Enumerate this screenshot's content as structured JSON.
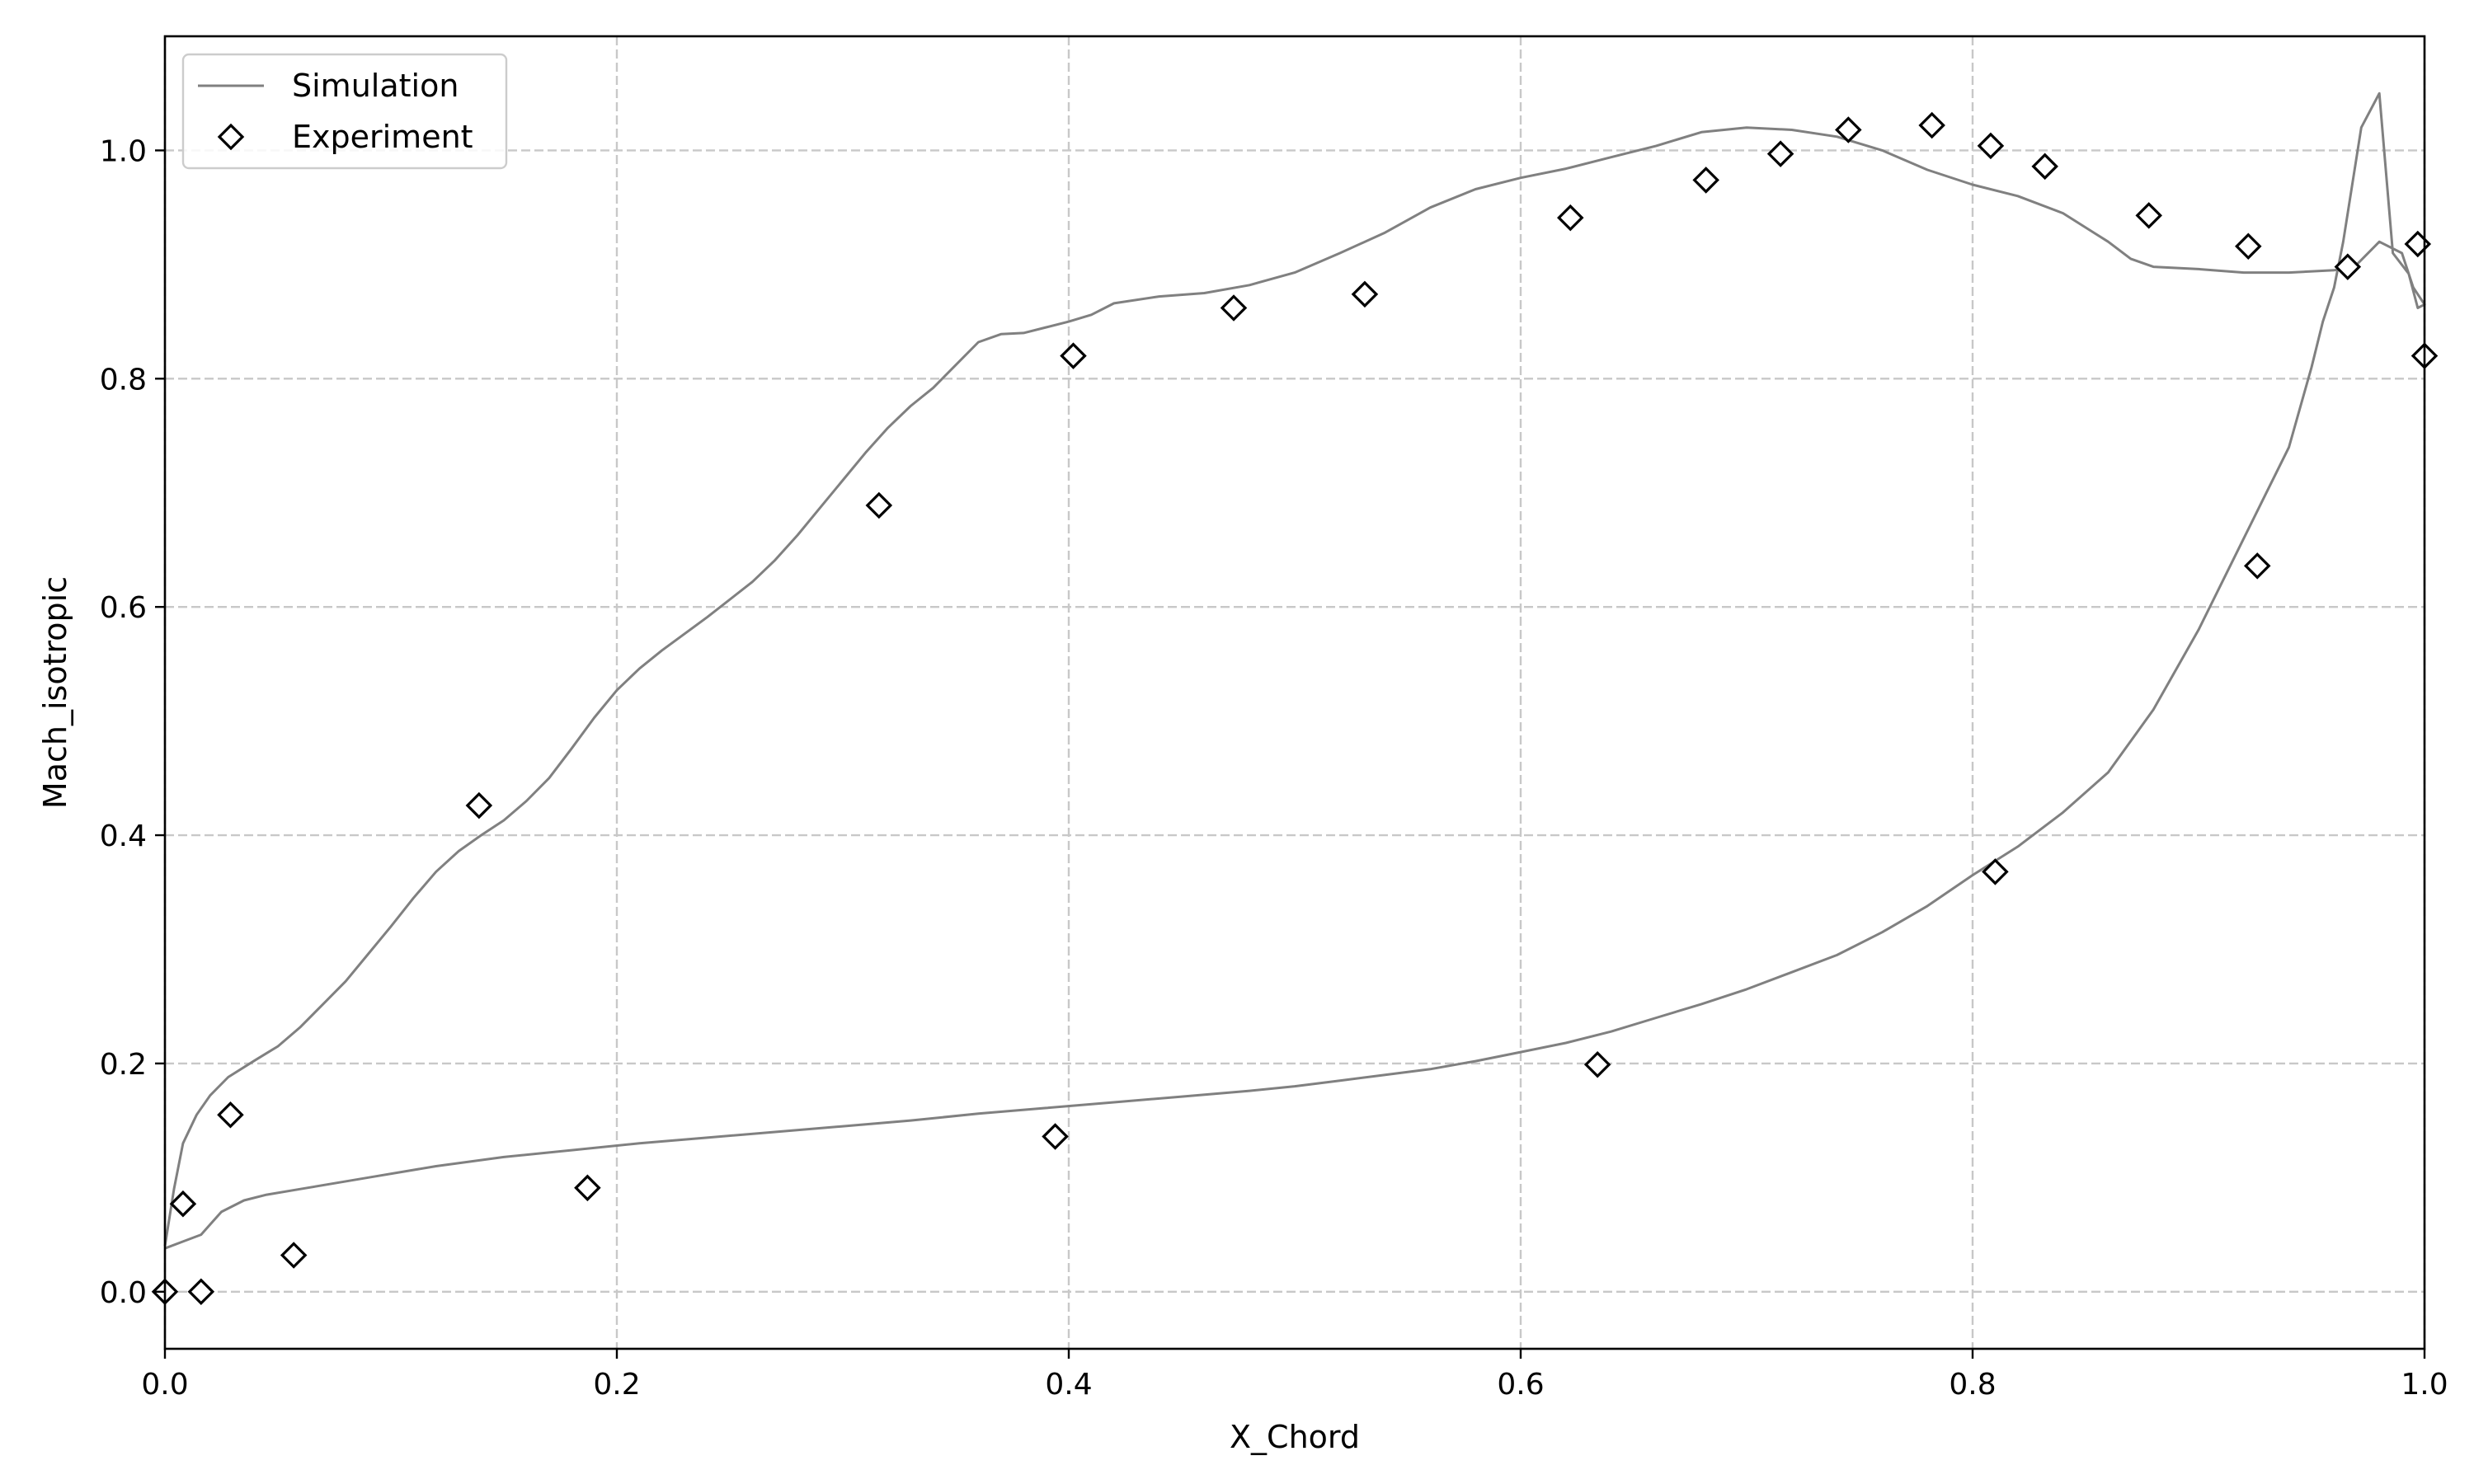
{
  "chart_data": {
    "type": "line",
    "title": "",
    "xlabel": "X_Chord",
    "ylabel": "Mach_isotropic",
    "xlim": [
      0.0,
      1.0
    ],
    "ylim": [
      -0.05,
      1.1
    ],
    "xticks": [
      0.0,
      0.2,
      0.4,
      0.6,
      0.8,
      1.0
    ],
    "xtick_labels": [
      "0.0",
      "0.2",
      "0.4",
      "0.6",
      "0.8",
      "1.0"
    ],
    "yticks": [
      0.0,
      0.2,
      0.4,
      0.6,
      0.8,
      1.0
    ],
    "ytick_labels": [
      "0.0",
      "0.2",
      "0.4",
      "0.6",
      "0.8",
      "1.0"
    ],
    "grid": true,
    "legend_position": "top-left",
    "colors": {
      "simulation": "#808080",
      "experiment": "#000000",
      "grid": "#c8c8c8"
    },
    "series": [
      {
        "name": "Simulation",
        "style": "line",
        "x": [
          0.0,
          0.004,
          0.008,
          0.014,
          0.02,
          0.028,
          0.04,
          0.05,
          0.06,
          0.07,
          0.08,
          0.09,
          0.1,
          0.11,
          0.12,
          0.13,
          0.14,
          0.15,
          0.16,
          0.17,
          0.18,
          0.19,
          0.2,
          0.21,
          0.22,
          0.24,
          0.26,
          0.27,
          0.28,
          0.29,
          0.3,
          0.31,
          0.32,
          0.33,
          0.34,
          0.35,
          0.36,
          0.37,
          0.38,
          0.39,
          0.4,
          0.41,
          0.42,
          0.44,
          0.46,
          0.48,
          0.5,
          0.52,
          0.54,
          0.56,
          0.58,
          0.6,
          0.62,
          0.64,
          0.66,
          0.68,
          0.7,
          0.72,
          0.74,
          0.76,
          0.78,
          0.8,
          0.82,
          0.84,
          0.86,
          0.87,
          0.88,
          0.89,
          0.9,
          0.92,
          0.94,
          0.96,
          0.97,
          0.98,
          0.99,
          0.995,
          1.0,
          0.997,
          0.993,
          0.986,
          0.98,
          0.972,
          0.964,
          0.96,
          0.955,
          0.95,
          0.945,
          0.94,
          0.93,
          0.92,
          0.9,
          0.88,
          0.86,
          0.84,
          0.82,
          0.8,
          0.78,
          0.76,
          0.74,
          0.72,
          0.7,
          0.68,
          0.66,
          0.64,
          0.62,
          0.6,
          0.58,
          0.56,
          0.54,
          0.52,
          0.5,
          0.48,
          0.45,
          0.42,
          0.39,
          0.36,
          0.33,
          0.3,
          0.27,
          0.24,
          0.21,
          0.18,
          0.15,
          0.12,
          0.09,
          0.06,
          0.045,
          0.035,
          0.025,
          0.016,
          0.008,
          0.0
        ],
        "y": [
          0.04,
          0.09,
          0.13,
          0.155,
          0.172,
          0.188,
          0.203,
          0.215,
          0.232,
          0.252,
          0.272,
          0.296,
          0.32,
          0.345,
          0.368,
          0.386,
          0.4,
          0.413,
          0.43,
          0.45,
          0.476,
          0.503,
          0.527,
          0.546,
          0.562,
          0.591,
          0.622,
          0.641,
          0.663,
          0.687,
          0.711,
          0.735,
          0.757,
          0.776,
          0.792,
          0.812,
          0.832,
          0.839,
          0.84,
          0.845,
          0.85,
          0.856,
          0.866,
          0.872,
          0.875,
          0.882,
          0.893,
          0.91,
          0.928,
          0.95,
          0.966,
          0.976,
          0.984,
          0.994,
          1.004,
          1.016,
          1.02,
          1.018,
          1.012,
          1.0,
          0.983,
          0.97,
          0.96,
          0.945,
          0.92,
          0.905,
          0.898,
          0.897,
          0.896,
          0.893,
          0.893,
          0.895,
          0.9,
          0.92,
          0.91,
          0.88,
          0.865,
          0.862,
          0.892,
          0.91,
          1.05,
          1.02,
          0.92,
          0.88,
          0.85,
          0.81,
          0.775,
          0.74,
          0.7,
          0.66,
          0.58,
          0.51,
          0.455,
          0.42,
          0.39,
          0.365,
          0.338,
          0.315,
          0.295,
          0.28,
          0.265,
          0.252,
          0.24,
          0.228,
          0.218,
          0.21,
          0.202,
          0.195,
          0.19,
          0.185,
          0.18,
          0.176,
          0.171,
          0.166,
          0.161,
          0.156,
          0.15,
          0.145,
          0.14,
          0.135,
          0.13,
          0.124,
          0.118,
          0.11,
          0.1,
          0.09,
          0.085,
          0.08,
          0.07,
          0.05,
          0.044,
          0.038
        ]
      },
      {
        "name": "Experiment",
        "style": "marker",
        "marker": "diamond",
        "x": [
          0.0,
          0.008,
          0.016,
          0.029,
          0.057,
          0.139,
          0.187,
          0.316,
          0.394,
          0.402,
          0.473,
          0.531,
          0.622,
          0.634,
          0.682,
          0.715,
          0.745,
          0.782,
          0.81,
          0.808,
          0.832,
          0.878,
          0.922,
          0.926,
          0.966,
          0.997,
          1.0
        ],
        "y": [
          0.0,
          0.077,
          0.0,
          0.155,
          0.032,
          0.426,
          0.091,
          0.689,
          0.136,
          0.82,
          0.862,
          0.874,
          0.941,
          0.199,
          0.974,
          0.997,
          1.018,
          1.022,
          0.368,
          1.004,
          0.986,
          0.943,
          0.916,
          0.636,
          0.898,
          0.918,
          0.82
        ]
      }
    ]
  }
}
